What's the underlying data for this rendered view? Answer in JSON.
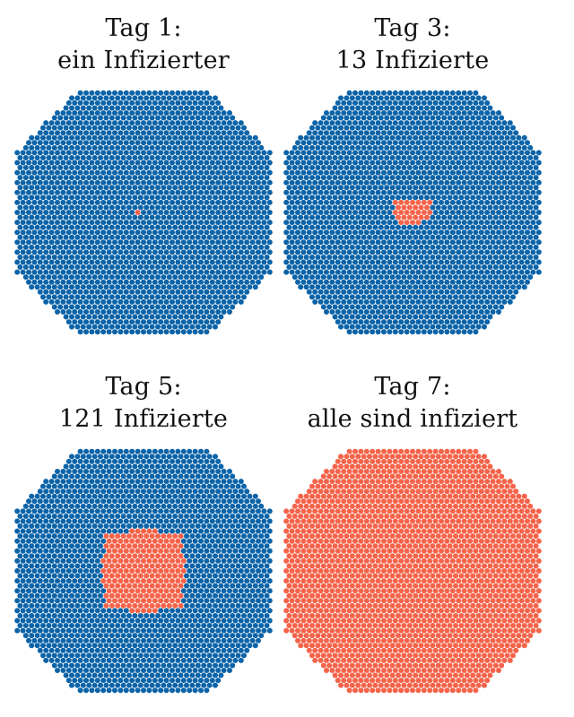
{
  "colors": {
    "healthy": "#0b63a8",
    "infected": "#f4634a",
    "background": "#ffffff"
  },
  "panels": [
    {
      "title_line1": "Tag 1:",
      "title_line2": "ein Infizierter",
      "infected_count": 1,
      "infected_region": "single center dot"
    },
    {
      "title_line1": "Tag 3:",
      "title_line2": "13 Infizierte",
      "infected_count": 13,
      "infected_region": "small cluster near center"
    },
    {
      "title_line1": "Tag 5:",
      "title_line2": "121 Infizierte",
      "infected_count": 121,
      "infected_region": "large central disc"
    },
    {
      "title_line1": "Tag 7:",
      "title_line2": "alle sind infiziert",
      "infected_count": "all",
      "infected_region": "entire population"
    }
  ]
}
